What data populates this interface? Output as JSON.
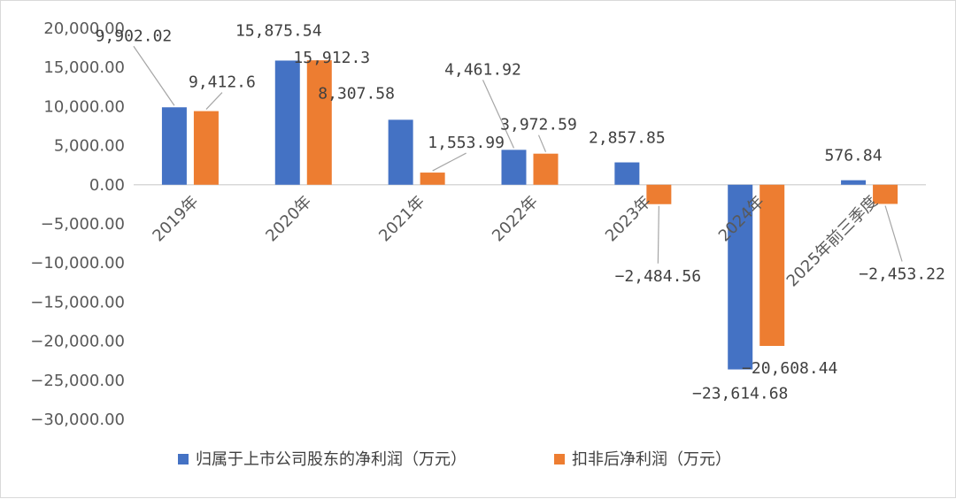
{
  "chart_data": {
    "type": "bar",
    "categories": [
      "2019年",
      "2020年",
      "2021年",
      "2022年",
      "2023年",
      "2024年",
      "2025年前三季度"
    ],
    "series": [
      {
        "name": "归属于上市公司股东的净利润（万元）",
        "color": "#4472c4",
        "values": [
          9902.02,
          15875.54,
          8307.58,
          4461.92,
          2857.85,
          -23614.68,
          576.84
        ],
        "labels": [
          "9,902.02",
          "15,875.54",
          "8,307.58",
          "4,461.92",
          "2,857.85",
          "-23,614.68",
          "576.84"
        ]
      },
      {
        "name": "扣非后净利润（万元）",
        "color": "#ed7d31",
        "values": [
          9412.6,
          15912.3,
          1553.99,
          3972.59,
          -2484.56,
          -20608.44,
          -2453.22
        ],
        "labels": [
          "9,412.6",
          "15,912.3",
          "1,553.99",
          "3,972.59",
          "-2,484.56",
          "-20,608.44",
          "-2,453.22"
        ]
      }
    ],
    "ylim": [
      -30000,
      20000
    ],
    "yticks": [
      "20,000.00",
      "15,000.00",
      "10,000.00",
      "5,000.00",
      "0.00",
      "-5,000.00",
      "-10,000.00",
      "-15,000.00",
      "-20,000.00",
      "-25,000.00",
      "-30,000.00"
    ],
    "ytick_values": [
      20000,
      15000,
      10000,
      5000,
      0,
      -5000,
      -10000,
      -15000,
      -20000,
      -25000,
      -30000
    ],
    "grid": false,
    "legend": "bottom"
  }
}
